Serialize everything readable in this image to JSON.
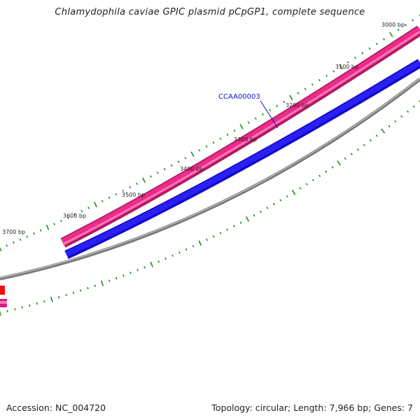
{
  "title": "Chlamydophila caviae GPIC plasmid pCpGP1, complete sequence",
  "accession_label": "Accession: NC_004720",
  "summary_label": "Topology: circular; Length: 7,966 bp; Genes: 7",
  "colors": {
    "gene_forward": "#ee2a8a",
    "gene_forward_dark": "#b0195f",
    "gene_reverse": "#1b10e8",
    "backbone": "#888888",
    "tick": "#1e8c1e",
    "gene_label": "#1111cc",
    "red_feature": "#ee1010"
  },
  "scale_labels": [
    "3000 bp",
    "3100 bp",
    "3200 bp",
    "3300 bp",
    "3400 bp",
    "3500 bp",
    "3600 bp",
    "3700 bp"
  ],
  "genes": [
    {
      "name": "CCAA00003"
    }
  ]
}
